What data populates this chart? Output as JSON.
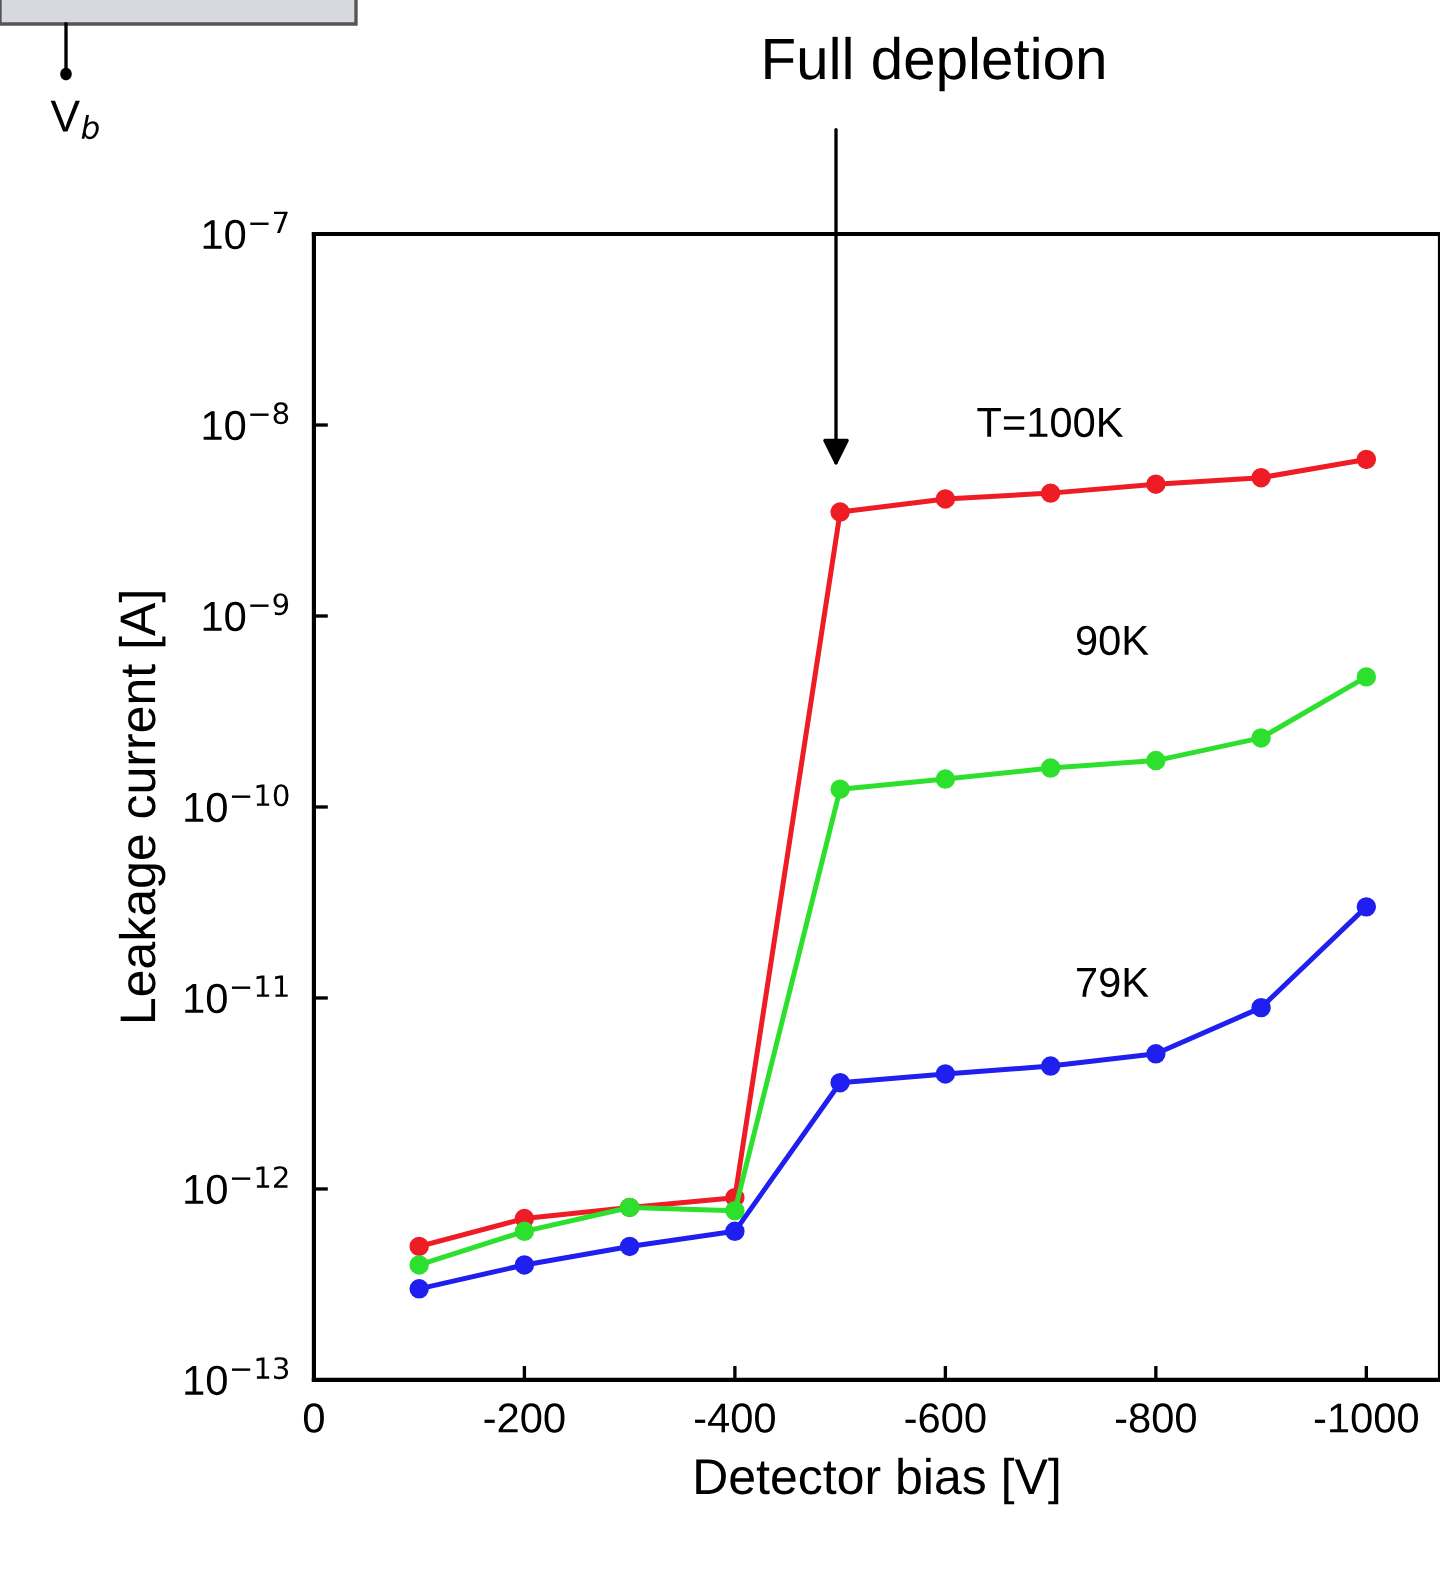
{
  "chart_data": {
    "type": "line",
    "x": [
      -100,
      -200,
      -300,
      -400,
      -500,
      -600,
      -700,
      -800,
      -900,
      -1000
    ],
    "xlabel": "Detector bias [V]",
    "ylabel": "Leakage current [A]",
    "series": [
      {
        "color": "#ee1c25",
        "values": [
          5e-13,
          7e-13,
          8e-13,
          9e-13,
          3.5e-09,
          4.1e-09,
          4.4e-09,
          4.9e-09,
          5.3e-09,
          6.6e-09
        ]
      },
      {
        "color": "#2ee02e",
        "values": [
          4e-13,
          6e-13,
          8e-13,
          7.7e-13,
          1.24e-10,
          1.4e-10,
          1.6e-10,
          1.75e-10,
          2.3e-10,
          4.8e-10
        ]
      },
      {
        "color": "#1f1fef",
        "values": [
          3e-13,
          4e-13,
          5e-13,
          6e-13,
          3.6e-12,
          4e-12,
          4.4e-12,
          5.1e-12,
          8.9e-12,
          3e-11
        ]
      }
    ],
    "log": "y",
    "marker": "circle",
    "line_style": "solid",
    "grid": false,
    "legend": false,
    "xlim": [
      0,
      -1070
    ],
    "xticks": [
      0,
      -200,
      -400,
      -600,
      -800,
      -1000
    ],
    "ylim": [
      1e-13,
      1e-07
    ],
    "yticks": [
      {
        "value": 1e-13,
        "label": "10$^{−13}$"
      },
      {
        "value": 1e-12,
        "label": "10$^{−12}$"
      },
      {
        "value": 1e-11,
        "label": "10$^{−11}$"
      },
      {
        "value": 1e-10,
        "label": "10$^{−10}$"
      },
      {
        "value": 1e-09,
        "label": "10$^{−9}$"
      },
      {
        "value": 1e-08,
        "label": "10$^{−8}$"
      },
      {
        "value": 1e-07,
        "label": "10$^{−7}$"
      }
    ],
    "annotations": [
      "T=100K",
      "90K",
      "79K",
      "Full depletion",
      "V$_{b}$"
    ]
  }
}
